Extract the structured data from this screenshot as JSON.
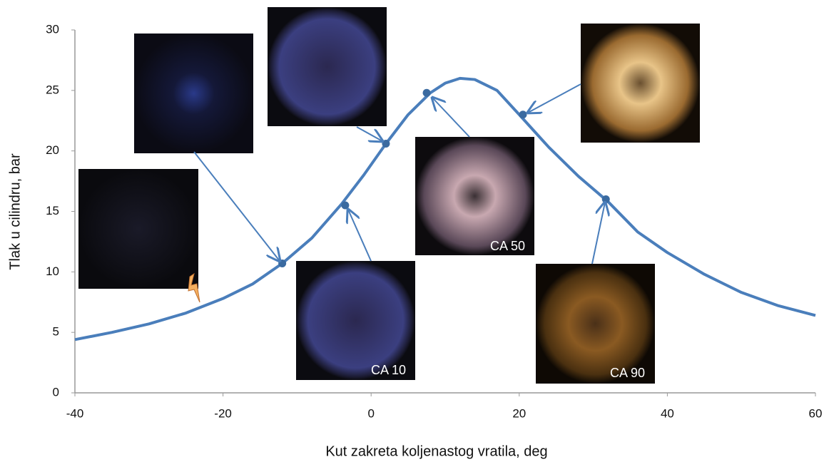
{
  "chart_data": {
    "type": "line",
    "x_label": "Kut zakreta koljenastog vratila, deg",
    "y_label": "Tlak u cilindru, bar",
    "xlim": [
      -40,
      60
    ],
    "ylim": [
      0,
      30
    ],
    "xticks": [
      -40,
      -20,
      0,
      20,
      40,
      60
    ],
    "yticks": [
      0,
      5,
      10,
      15,
      20,
      25,
      30
    ],
    "series": [
      {
        "color": "#4a7ebb",
        "x": [
          -40,
          -35,
          -30,
          -25,
          -20,
          -16,
          -12,
          -8,
          -4,
          -1,
          2,
          5,
          8,
          10,
          12,
          14,
          17,
          20,
          24,
          28,
          32,
          36,
          40,
          45,
          50,
          55,
          60
        ],
        "values": [
          4.4,
          5.0,
          5.7,
          6.6,
          7.8,
          9.0,
          10.7,
          12.8,
          15.6,
          18.0,
          20.6,
          23.0,
          24.8,
          25.6,
          26.0,
          25.9,
          25.0,
          23.0,
          20.3,
          17.9,
          15.8,
          13.3,
          11.6,
          9.8,
          8.3,
          7.2,
          6.4
        ]
      }
    ],
    "markers": {
      "color": "#3a6aa0",
      "x": [
        -12,
        -3.5,
        2,
        7.5,
        20.5,
        31.7
      ],
      "values": [
        10.7,
        15.5,
        20.6,
        24.8,
        23.0,
        16.0
      ]
    },
    "annotations": [
      "CA 10",
      "CA 50",
      "CA 90"
    ]
  }
}
